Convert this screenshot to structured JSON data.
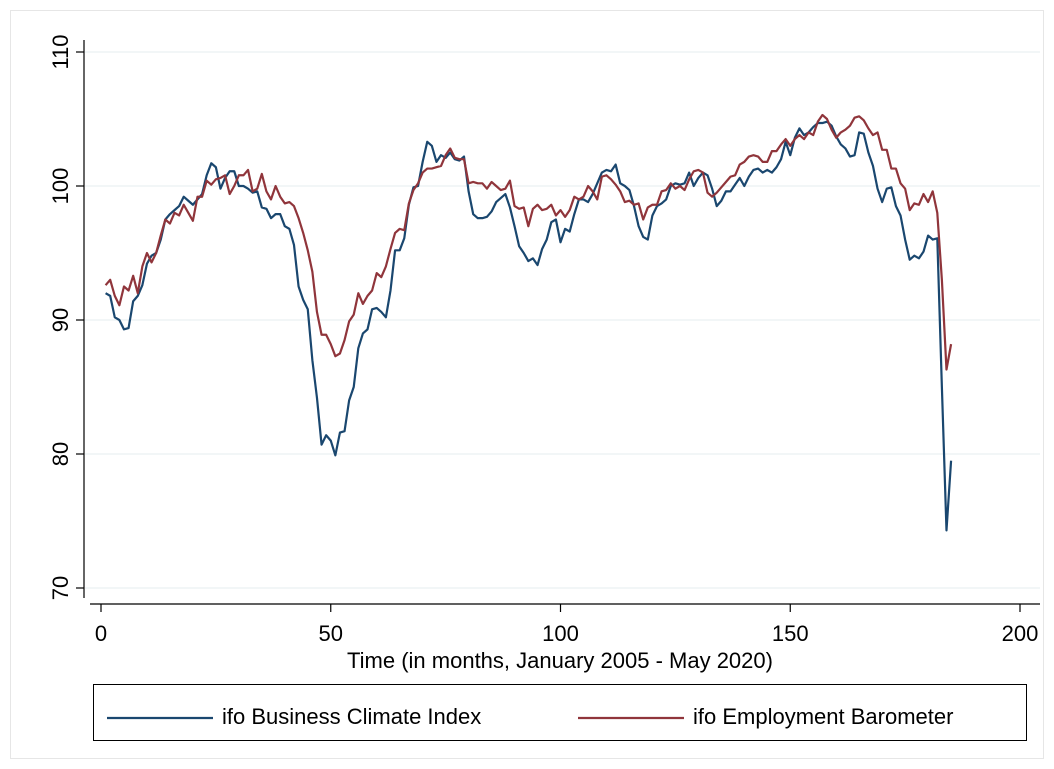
{
  "chart_data": {
    "type": "line",
    "xlabel": "Time (in months, January 2005 - May 2020)",
    "xlim": [
      0,
      200
    ],
    "xticks": [
      0,
      50,
      100,
      150,
      200
    ],
    "ylim": [
      70,
      110
    ],
    "yticks": [
      70,
      80,
      90,
      100,
      110
    ],
    "grid": true,
    "legend": "bottom",
    "x": [
      1,
      2,
      3,
      4,
      5,
      6,
      7,
      8,
      9,
      10,
      11,
      12,
      13,
      14,
      15,
      16,
      17,
      18,
      19,
      20,
      21,
      22,
      23,
      24,
      25,
      26,
      27,
      28,
      29,
      30,
      31,
      32,
      33,
      34,
      35,
      36,
      37,
      38,
      39,
      40,
      41,
      42,
      43,
      44,
      45,
      46,
      47,
      48,
      49,
      50,
      51,
      52,
      53,
      54,
      55,
      56,
      57,
      58,
      59,
      60,
      61,
      62,
      63,
      64,
      65,
      66,
      67,
      68,
      69,
      70,
      71,
      72,
      73,
      74,
      75,
      76,
      77,
      78,
      79,
      80,
      81,
      82,
      83,
      84,
      85,
      86,
      87,
      88,
      89,
      90,
      91,
      92,
      93,
      94,
      95,
      96,
      97,
      98,
      99,
      100,
      101,
      102,
      103,
      104,
      105,
      106,
      107,
      108,
      109,
      110,
      111,
      112,
      113,
      114,
      115,
      116,
      117,
      118,
      119,
      120,
      121,
      122,
      123,
      124,
      125,
      126,
      127,
      128,
      129,
      130,
      131,
      132,
      133,
      134,
      135,
      136,
      137,
      138,
      139,
      140,
      141,
      142,
      143,
      144,
      145,
      146,
      147,
      148,
      149,
      150,
      151,
      152,
      153,
      154,
      155,
      156,
      157,
      158,
      159,
      160,
      161,
      162,
      163,
      164,
      165,
      166,
      167,
      168,
      169,
      170,
      171,
      172,
      173,
      174,
      175,
      176,
      177,
      178,
      179,
      180,
      181,
      182,
      183,
      184,
      185
    ],
    "series": [
      {
        "name": "ifo Business Climate Index",
        "color": "#1a476f",
        "values": [
          92.0,
          91.8,
          90.2,
          90.0,
          89.3,
          89.4,
          91.4,
          91.8,
          92.6,
          94.2,
          94.8,
          95.0,
          96.0,
          97.5,
          97.9,
          98.2,
          98.5,
          99.2,
          98.9,
          98.6,
          99.0,
          99.4,
          100.8,
          101.7,
          101.4,
          99.8,
          100.6,
          101.1,
          101.1,
          100.0,
          100.0,
          99.8,
          99.5,
          99.6,
          98.4,
          98.3,
          97.6,
          97.9,
          97.9,
          97.0,
          96.8,
          95.6,
          92.5,
          91.5,
          90.8,
          87.0,
          84.2,
          80.7,
          81.4,
          81.0,
          79.9,
          81.6,
          81.7,
          84.0,
          85.0,
          87.9,
          89.0,
          89.3,
          90.8,
          90.9,
          90.6,
          90.2,
          92.2,
          95.2,
          95.2,
          96.1,
          98.6,
          99.9,
          100.0,
          101.8,
          103.3,
          103.0,
          101.8,
          102.3,
          102.1,
          102.5,
          102.0,
          101.9,
          102.2,
          99.6,
          97.9,
          97.6,
          97.6,
          97.7,
          98.1,
          98.8,
          99.1,
          99.4,
          98.4,
          97.0,
          95.5,
          95.0,
          94.4,
          94.6,
          94.1,
          95.3,
          96.0,
          97.3,
          97.5,
          95.8,
          96.8,
          96.6,
          97.9,
          99.0,
          99.0,
          98.8,
          99.4,
          100.2,
          101.0,
          101.2,
          101.1,
          101.6,
          100.2,
          100.0,
          99.7,
          98.5,
          97.0,
          96.2,
          96.0,
          97.8,
          98.5,
          98.7,
          99.0,
          100.0,
          100.2,
          100.1,
          100.2,
          101.0,
          100.0,
          100.6,
          101.0,
          100.8,
          99.8,
          98.5,
          98.9,
          99.6,
          99.6,
          100.1,
          100.6,
          100.0,
          100.7,
          101.2,
          101.3,
          101.0,
          101.2,
          101.0,
          101.4,
          102.0,
          103.3,
          102.3,
          103.6,
          104.3,
          103.8,
          104.0,
          104.4,
          104.7,
          104.7,
          104.8,
          104.5,
          103.7,
          103.1,
          102.8,
          102.2,
          102.3,
          104.0,
          103.9,
          102.5,
          101.5,
          99.8,
          98.8,
          99.8,
          99.9,
          98.5,
          97.8,
          96.0,
          94.5,
          94.8,
          94.6,
          95.1,
          96.3,
          96.0,
          96.1,
          85.0,
          74.3,
          79.5
        ]
      },
      {
        "name": "ifo Employment Barometer",
        "color": "#90353b",
        "values": [
          92.6,
          93.0,
          91.8,
          91.1,
          92.5,
          92.2,
          93.3,
          92.0,
          94.0,
          95.0,
          94.3,
          95.0,
          96.3,
          97.5,
          97.2,
          98.0,
          97.8,
          98.6,
          98.0,
          97.4,
          99.2,
          99.2,
          100.4,
          100.1,
          100.5,
          100.6,
          100.8,
          99.4,
          100.0,
          100.8,
          100.8,
          101.2,
          99.6,
          99.8,
          100.9,
          99.6,
          99.0,
          100.0,
          99.2,
          98.7,
          98.8,
          98.5,
          97.6,
          96.5,
          95.2,
          93.6,
          90.6,
          88.9,
          88.9,
          88.2,
          87.3,
          87.5,
          88.5,
          89.9,
          90.4,
          92.0,
          91.2,
          91.8,
          92.2,
          93.5,
          93.2,
          94.0,
          95.3,
          96.5,
          96.8,
          96.7,
          98.7,
          99.7,
          100.2,
          101.0,
          101.3,
          101.3,
          101.4,
          101.5,
          102.3,
          102.8,
          102.1,
          102.0,
          102.0,
          100.2,
          100.3,
          100.2,
          100.2,
          99.8,
          100.3,
          100.0,
          99.7,
          99.8,
          100.4,
          98.5,
          98.3,
          98.4,
          97.0,
          98.3,
          98.6,
          98.2,
          98.3,
          98.6,
          97.8,
          98.2,
          97.7,
          98.2,
          99.2,
          99.0,
          99.2,
          100.0,
          99.6,
          99.0,
          100.7,
          100.8,
          100.5,
          100.1,
          99.6,
          98.8,
          98.9,
          98.6,
          98.7,
          97.5,
          98.4,
          98.6,
          98.6,
          99.6,
          99.7,
          100.2,
          99.8,
          100.0,
          99.7,
          100.5,
          101.1,
          101.2,
          101.0,
          99.5,
          99.2,
          99.5,
          99.9,
          100.3,
          100.7,
          100.8,
          101.6,
          101.8,
          102.2,
          102.3,
          102.2,
          101.8,
          101.8,
          102.6,
          102.6,
          103.1,
          103.5,
          103.0,
          103.5,
          103.8,
          103.5,
          104.0,
          103.8,
          104.8,
          105.3,
          105.0,
          104.2,
          103.6,
          104.0,
          104.2,
          104.5,
          105.1,
          105.2,
          104.9,
          104.3,
          103.8,
          104.0,
          102.7,
          102.7,
          101.3,
          101.3,
          100.2,
          99.8,
          98.2,
          98.7,
          98.6,
          99.4,
          98.8,
          99.6,
          98.0,
          93.0,
          86.3,
          88.2
        ]
      }
    ]
  }
}
